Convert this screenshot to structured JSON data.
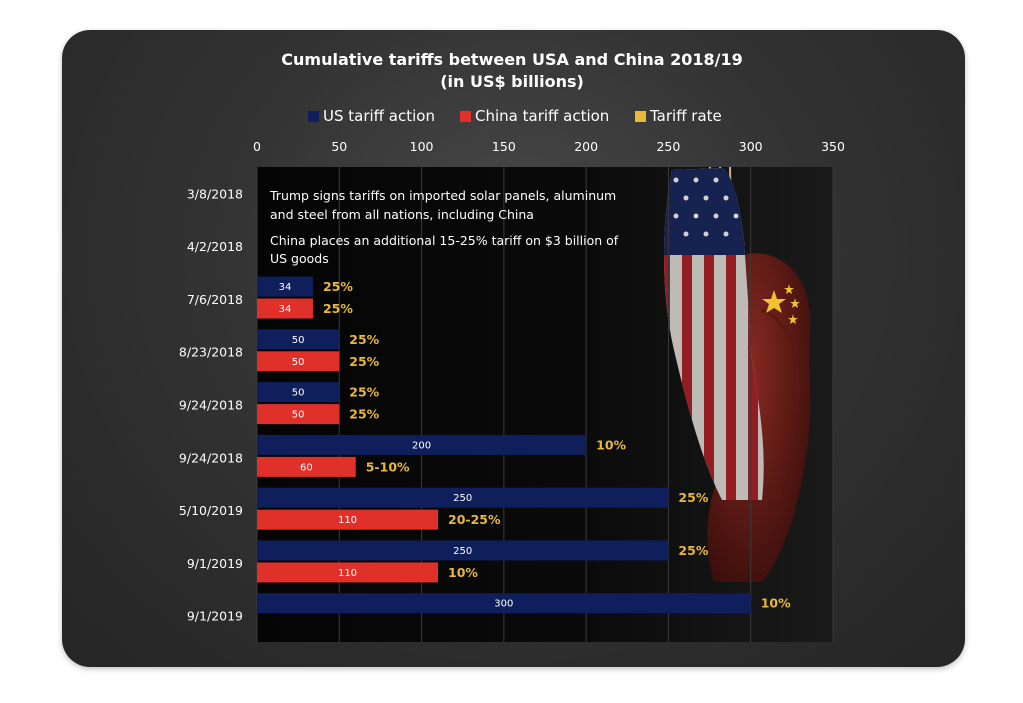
{
  "chart_data": {
    "type": "bar",
    "orientation": "horizontal",
    "title_line1": "Cumulative tariffs between USA and China 2018/19",
    "title_line2": "(in US$ billions)",
    "xlim": [
      0,
      350
    ],
    "x_ticks": [
      "0",
      "50",
      "100",
      "150",
      "200",
      "250",
      "300",
      "350"
    ],
    "legend": {
      "placement": "top",
      "entries": [
        {
          "name": "US tariff action",
          "color": "#0e1f5c"
        },
        {
          "name": "China tariff action",
          "color": "#e0302a"
        },
        {
          "name": "Tariff rate",
          "color": "#e9b83a"
        }
      ]
    },
    "categories": [
      "3/8/2018",
      "4/2/2018",
      "7/6/2018",
      "8/23/2018",
      "9/24/2018",
      "9/24/2018",
      "5/10/2019",
      "9/1/2019",
      "9/1/2019"
    ],
    "series": [
      {
        "name": "US tariff action",
        "values": [
          null,
          null,
          34,
          50,
          50,
          200,
          250,
          250,
          300
        ],
        "labels": [
          "",
          "",
          "34",
          "50",
          "50",
          "200",
          "250",
          "250",
          "300"
        ],
        "rates": [
          "",
          "",
          "25%",
          "25%",
          "25%",
          "10%",
          "25%",
          "25%",
          "10%"
        ]
      },
      {
        "name": "China tariff action",
        "values": [
          null,
          null,
          34,
          50,
          50,
          60,
          110,
          110,
          null
        ],
        "labels": [
          "",
          "",
          "34",
          "50",
          "50",
          "60",
          "110",
          "110",
          ""
        ],
        "rates": [
          "",
          "",
          "25%",
          "25%",
          "25%",
          "5-10%",
          "20-25%",
          "10%",
          ""
        ]
      }
    ],
    "annotations": [
      {
        "line1": "Trump signs tariffs on imported solar panels, aluminum",
        "line2": "and steel from all nations, including China"
      },
      {
        "line1": "China places an additional 15-25% tariff on $3 billion of",
        "line2": "US goods"
      }
    ],
    "grid": true
  }
}
